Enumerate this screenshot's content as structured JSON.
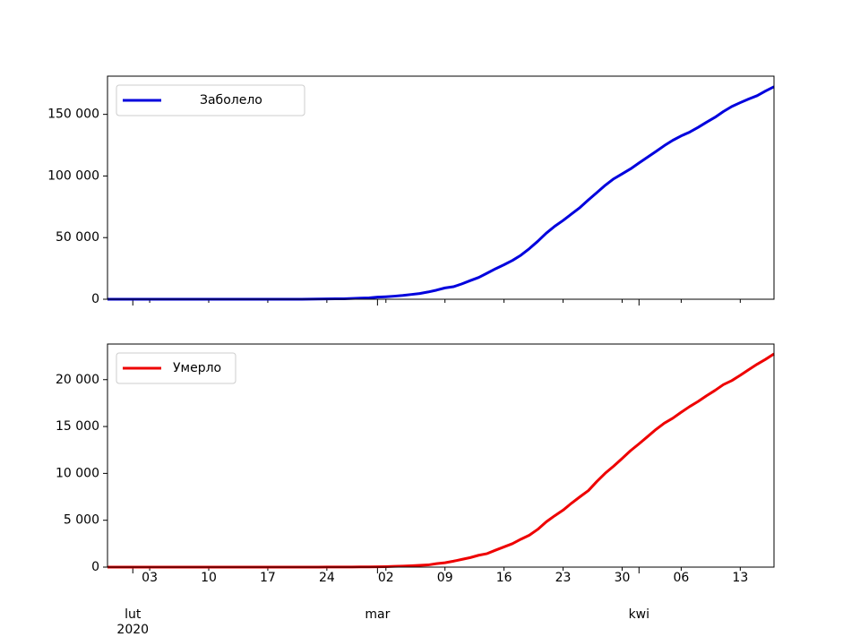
{
  "chart_data": [
    {
      "type": "line",
      "x": [
        "2020-01-29",
        "2020-01-30",
        "2020-01-31",
        "2020-02-01",
        "2020-02-02",
        "2020-02-03",
        "2020-02-04",
        "2020-02-05",
        "2020-02-06",
        "2020-02-07",
        "2020-02-08",
        "2020-02-09",
        "2020-02-10",
        "2020-02-11",
        "2020-02-12",
        "2020-02-13",
        "2020-02-14",
        "2020-02-15",
        "2020-02-16",
        "2020-02-17",
        "2020-02-18",
        "2020-02-19",
        "2020-02-20",
        "2020-02-21",
        "2020-02-22",
        "2020-02-23",
        "2020-02-24",
        "2020-02-25",
        "2020-02-26",
        "2020-02-27",
        "2020-02-28",
        "2020-02-29",
        "2020-03-01",
        "2020-03-02",
        "2020-03-03",
        "2020-03-04",
        "2020-03-05",
        "2020-03-06",
        "2020-03-07",
        "2020-03-08",
        "2020-03-09",
        "2020-03-10",
        "2020-03-11",
        "2020-03-12",
        "2020-03-13",
        "2020-03-14",
        "2020-03-15",
        "2020-03-16",
        "2020-03-17",
        "2020-03-18",
        "2020-03-19",
        "2020-03-20",
        "2020-03-21",
        "2020-03-22",
        "2020-03-23",
        "2020-03-24",
        "2020-03-25",
        "2020-03-26",
        "2020-03-27",
        "2020-03-28",
        "2020-03-29",
        "2020-03-30",
        "2020-03-31",
        "2020-04-01",
        "2020-04-02",
        "2020-04-03",
        "2020-04-04",
        "2020-04-05",
        "2020-04-06",
        "2020-04-07",
        "2020-04-08",
        "2020-04-09",
        "2020-04-10",
        "2020-04-11",
        "2020-04-12",
        "2020-04-13",
        "2020-04-14",
        "2020-04-15",
        "2020-04-16",
        "2020-04-17"
      ],
      "series": [
        {
          "name": "Заболело",
          "color": "#0000dd",
          "values": [
            0,
            0,
            2,
            2,
            2,
            2,
            2,
            2,
            3,
            3,
            3,
            3,
            3,
            3,
            3,
            3,
            3,
            3,
            3,
            3,
            3,
            3,
            3,
            20,
            79,
            150,
            229,
            322,
            400,
            650,
            888,
            1128,
            1694,
            2036,
            2502,
            3089,
            3858,
            4636,
            5883,
            7375,
            9172,
            10149,
            12462,
            15113,
            17660,
            21157,
            24747,
            27980,
            31506,
            35713,
            41035,
            47021,
            53578,
            59138,
            63927,
            69176,
            74386,
            80589,
            86498,
            92472,
            97689,
            101739,
            105792,
            110574,
            115242,
            119827,
            124632,
            128948,
            132547,
            135586,
            139422,
            143626,
            147577,
            152271,
            156363,
            159516,
            162488,
            165155,
            168941,
            172434
          ]
        }
      ],
      "xlim": [
        "2020-01-29",
        "2020-04-17"
      ],
      "ylim": [
        0,
        181000
      ],
      "yticks": [
        0,
        {
          "value": 50000,
          "label": "50 000"
        },
        {
          "value": 100000,
          "label": "100 000"
        },
        {
          "value": 150000,
          "label": "150 000"
        }
      ],
      "legend": "upper left"
    },
    {
      "type": "line",
      "x": [
        "2020-01-29",
        "2020-01-30",
        "2020-01-31",
        "2020-02-01",
        "2020-02-02",
        "2020-02-03",
        "2020-02-04",
        "2020-02-05",
        "2020-02-06",
        "2020-02-07",
        "2020-02-08",
        "2020-02-09",
        "2020-02-10",
        "2020-02-11",
        "2020-02-12",
        "2020-02-13",
        "2020-02-14",
        "2020-02-15",
        "2020-02-16",
        "2020-02-17",
        "2020-02-18",
        "2020-02-19",
        "2020-02-20",
        "2020-02-21",
        "2020-02-22",
        "2020-02-23",
        "2020-02-24",
        "2020-02-25",
        "2020-02-26",
        "2020-02-27",
        "2020-02-28",
        "2020-02-29",
        "2020-03-01",
        "2020-03-02",
        "2020-03-03",
        "2020-03-04",
        "2020-03-05",
        "2020-03-06",
        "2020-03-07",
        "2020-03-08",
        "2020-03-09",
        "2020-03-10",
        "2020-03-11",
        "2020-03-12",
        "2020-03-13",
        "2020-03-14",
        "2020-03-15",
        "2020-03-16",
        "2020-03-17",
        "2020-03-18",
        "2020-03-19",
        "2020-03-20",
        "2020-03-21",
        "2020-03-22",
        "2020-03-23",
        "2020-03-24",
        "2020-03-25",
        "2020-03-26",
        "2020-03-27",
        "2020-03-28",
        "2020-03-29",
        "2020-03-30",
        "2020-03-31",
        "2020-04-01",
        "2020-04-02",
        "2020-04-03",
        "2020-04-04",
        "2020-04-05",
        "2020-04-06",
        "2020-04-07",
        "2020-04-08",
        "2020-04-09",
        "2020-04-10",
        "2020-04-11",
        "2020-04-12",
        "2020-04-13",
        "2020-04-14",
        "2020-04-15",
        "2020-04-16",
        "2020-04-17"
      ],
      "series": [
        {
          "name": "Умерло",
          "color": "#ee0000",
          "values": [
            0,
            0,
            0,
            0,
            0,
            0,
            0,
            0,
            0,
            0,
            0,
            0,
            0,
            0,
            0,
            0,
            0,
            0,
            0,
            0,
            0,
            0,
            0,
            1,
            2,
            3,
            7,
            10,
            12,
            17,
            21,
            29,
            34,
            52,
            79,
            107,
            148,
            197,
            233,
            366,
            463,
            631,
            827,
            1016,
            1266,
            1441,
            1809,
            2158,
            2503,
            2978,
            3405,
            4032,
            4825,
            5476,
            6077,
            6820,
            7503,
            8165,
            9134,
            10023,
            10779,
            11591,
            12428,
            13155,
            13915,
            14681,
            15362,
            15887,
            16523,
            17127,
            17669,
            18279,
            18849,
            19468,
            19899,
            20465,
            21067,
            21645,
            22170,
            22745
          ]
        }
      ],
      "xlim": [
        "2020-01-29",
        "2020-04-17"
      ],
      "ylim": [
        0,
        23800
      ],
      "yticks": [
        0,
        {
          "value": 5000,
          "label": "5 000"
        },
        {
          "value": 10000,
          "label": "10 000"
        },
        {
          "value": 15000,
          "label": "15 000"
        },
        {
          "value": 20000,
          "label": "20 000"
        }
      ],
      "xticks": [
        {
          "value": "2020-02-03",
          "label": "03"
        },
        {
          "value": "2020-02-10",
          "label": "10"
        },
        {
          "value": "2020-02-17",
          "label": "17"
        },
        {
          "value": "2020-02-24",
          "label": "24"
        },
        {
          "value": "2020-03-02",
          "label": "02"
        },
        {
          "value": "2020-03-09",
          "label": "09"
        },
        {
          "value": "2020-03-16",
          "label": "16"
        },
        {
          "value": "2020-03-23",
          "label": "23"
        },
        {
          "value": "2020-03-30",
          "label": "30"
        },
        {
          "value": "2020-04-06",
          "label": "06"
        },
        {
          "value": "2020-04-13",
          "label": "13"
        }
      ],
      "xticks_major": [
        {
          "value": "2020-02-01",
          "label": "lut"
        },
        {
          "value": "2020-03-01",
          "label": "mar"
        },
        {
          "value": "2020-04-01",
          "label": "kwi"
        }
      ],
      "year_label": "2020",
      "legend": "upper left"
    }
  ]
}
